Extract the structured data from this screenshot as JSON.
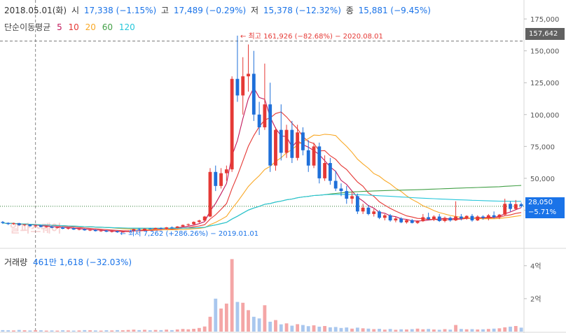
{
  "header": {
    "date": "2018.05.01(화)",
    "open_label": "시",
    "open_value": "17,338 (−1.15%)",
    "high_label": "고",
    "high_value": "17,489 (−0.29%)",
    "low_label": "저",
    "low_value": "15,378 (−12.32%)",
    "close_label": "종",
    "close_value": "15,881 (−9.45%)"
  },
  "ma_legend": {
    "title": "단순이동평균",
    "items": [
      {
        "label": "5",
        "color": "#c2185b"
      },
      {
        "label": "10",
        "color": "#e53935"
      },
      {
        "label": "20",
        "color": "#f9a825"
      },
      {
        "label": "60",
        "color": "#43a047"
      },
      {
        "label": "120",
        "color": "#26c6da"
      }
    ]
  },
  "annotations": {
    "high": "최고 161,926 (−82.68%) − 2020.08.01",
    "low": "최저 7,262 (+286.26%) − 2019.01.01"
  },
  "current_price": {
    "value": "28,050",
    "change": "−5.71%"
  },
  "high_line_label": "157,642",
  "volume_header": {
    "title": "거래량",
    "value": "461만 1,618 (−32.03%)"
  },
  "watermark": "알파스퀘어",
  "colors": {
    "up": "#e53935",
    "down": "#1e6fd9",
    "vol_up": "#f4a6a6",
    "vol_down": "#a9c7ee"
  },
  "chart_data": [
    {
      "type": "candlestick",
      "y_ticks": [
        "175,000",
        "150,000",
        "125,000",
        "100,000",
        "75,000",
        "50,000",
        "25,000"
      ],
      "ylim": [
        0,
        180000
      ],
      "ohlc": [
        [
          15800,
          16500,
          14200,
          15000
        ],
        [
          15000,
          15500,
          13400,
          14100
        ],
        [
          14100,
          15200,
          13500,
          14800
        ],
        [
          14800,
          15100,
          12800,
          13200
        ],
        [
          13200,
          14000,
          12500,
          13700
        ],
        [
          13700,
          14100,
          12100,
          12400
        ],
        [
          12400,
          13300,
          11900,
          13000
        ],
        [
          13000,
          13400,
          11500,
          11800
        ],
        [
          11800,
          12600,
          11200,
          12300
        ],
        [
          12300,
          12700,
          10900,
          11100
        ],
        [
          11100,
          11900,
          10500,
          11600
        ],
        [
          11600,
          12000,
          10100,
          10400
        ],
        [
          10400,
          11200,
          9800,
          10900
        ],
        [
          10900,
          11300,
          9500,
          9800
        ],
        [
          9800,
          10500,
          9200,
          10200
        ],
        [
          10200,
          10600,
          8900,
          9200
        ],
        [
          9200,
          9900,
          8600,
          9600
        ],
        [
          9600,
          10000,
          8300,
          8600
        ],
        [
          8600,
          9300,
          8000,
          9000
        ],
        [
          9000,
          9400,
          7800,
          8100
        ],
        [
          8100,
          8800,
          7500,
          8500
        ],
        [
          8500,
          8900,
          7262,
          7700
        ],
        [
          7700,
          8400,
          7500,
          8100
        ],
        [
          8100,
          9200,
          7900,
          8900
        ],
        [
          8900,
          10500,
          8700,
          10200
        ],
        [
          10200,
          11000,
          9300,
          9600
        ],
        [
          9600,
          10800,
          9400,
          10500
        ],
        [
          10500,
          11100,
          9800,
          10100
        ],
        [
          10100,
          11300,
          9900,
          11000
        ],
        [
          11000,
          11500,
          10000,
          10400
        ],
        [
          10400,
          11800,
          10200,
          11500
        ],
        [
          11500,
          12300,
          10900,
          11100
        ],
        [
          11100,
          12500,
          10900,
          12200
        ],
        [
          12200,
          13800,
          11800,
          13400
        ],
        [
          13400,
          14500,
          12700,
          14000
        ],
        [
          14000,
          16200,
          13600,
          15800
        ],
        [
          15800,
          17500,
          15000,
          16900
        ],
        [
          16900,
          20500,
          16500,
          20000
        ],
        [
          20000,
          58000,
          19500,
          55000
        ],
        [
          55000,
          60000,
          40000,
          44000
        ],
        [
          44000,
          58000,
          42000,
          54000
        ],
        [
          54000,
          60000,
          48000,
          57000
        ],
        [
          57000,
          130000,
          55000,
          128000
        ],
        [
          128000,
          161926,
          110000,
          115000
        ],
        [
          115000,
          145000,
          100000,
          130000
        ],
        [
          130000,
          155000,
          118000,
          132000
        ],
        [
          132000,
          150000,
          95000,
          100000
        ],
        [
          100000,
          110000,
          84000,
          90000
        ],
        [
          90000,
          140000,
          88000,
          108000
        ],
        [
          108000,
          125000,
          55000,
          60000
        ],
        [
          60000,
          90000,
          56000,
          88000
        ],
        [
          88000,
          108000,
          64000,
          70000
        ],
        [
          70000,
          92000,
          66000,
          88000
        ],
        [
          88000,
          95000,
          62000,
          66000
        ],
        [
          66000,
          92000,
          64000,
          86000
        ],
        [
          86000,
          90000,
          68000,
          72000
        ],
        [
          72000,
          80000,
          55000,
          60000
        ],
        [
          60000,
          78000,
          58000,
          75000
        ],
        [
          75000,
          78000,
          46000,
          50000
        ],
        [
          50000,
          68000,
          48000,
          62000
        ],
        [
          62000,
          66000,
          45000,
          48000
        ],
        [
          48000,
          56000,
          40000,
          42000
        ],
        [
          42000,
          46000,
          36000,
          40000
        ],
        [
          40000,
          44000,
          30000,
          34000
        ],
        [
          34000,
          40000,
          30000,
          36000
        ],
        [
          36000,
          38000,
          22000,
          24000
        ],
        [
          24000,
          30000,
          22000,
          27000
        ],
        [
          27000,
          29000,
          21000,
          22000
        ],
        [
          22000,
          26000,
          20000,
          24000
        ],
        [
          24000,
          25000,
          18000,
          19000
        ],
        [
          19000,
          22000,
          17000,
          21000
        ],
        [
          21000,
          22000,
          16000,
          17000
        ],
        [
          17000,
          20000,
          15500,
          18500
        ],
        [
          18500,
          19500,
          14800,
          15500
        ],
        [
          15500,
          18000,
          14500,
          17200
        ],
        [
          17200,
          18000,
          14600,
          15000
        ],
        [
          15000,
          17000,
          14200,
          16400
        ],
        [
          16400,
          22000,
          15800,
          19500
        ],
        [
          19500,
          23000,
          17200,
          18000
        ],
        [
          18000,
          21000,
          16500,
          20000
        ],
        [
          20000,
          22000,
          15800,
          16500
        ],
        [
          16500,
          20000,
          15500,
          19000
        ],
        [
          19000,
          20000,
          16000,
          17000
        ],
        [
          17000,
          32000,
          16500,
          20000
        ],
        [
          20000,
          22000,
          17000,
          18500
        ],
        [
          18500,
          21000,
          17500,
          20500
        ],
        [
          20500,
          22000,
          16000,
          17000
        ],
        [
          17000,
          21000,
          16500,
          20000
        ],
        [
          20000,
          21000,
          17500,
          19000
        ],
        [
          19000,
          22000,
          17000,
          21000
        ],
        [
          21000,
          24000,
          18500,
          19500
        ],
        [
          19500,
          22000,
          18000,
          21500
        ],
        [
          21500,
          34000,
          21000,
          30000
        ],
        [
          30000,
          32000,
          24000,
          26000
        ],
        [
          26000,
          33000,
          25000,
          29750
        ],
        [
          29750,
          31000,
          27000,
          28050
        ]
      ],
      "volume_ticks": [
        "4억",
        "2억"
      ],
      "volume_ylim": [
        0,
        450000000
      ],
      "volumes": [
        9000000,
        8000000,
        7000000,
        10000000,
        8000000,
        7000000,
        9000000,
        8000000,
        6000000,
        7000000,
        6000000,
        8000000,
        7000000,
        6000000,
        7000000,
        9000000,
        8000000,
        7000000,
        6000000,
        8000000,
        7000000,
        9000000,
        8000000,
        10000000,
        12000000,
        9000000,
        11000000,
        8000000,
        10000000,
        9000000,
        12000000,
        9000000,
        13000000,
        16000000,
        14000000,
        17000000,
        22000000,
        31000000,
        90000000,
        200000000,
        140000000,
        170000000,
        440000000,
        180000000,
        175000000,
        130000000,
        90000000,
        80000000,
        160000000,
        60000000,
        70000000,
        44000000,
        50000000,
        36000000,
        45000000,
        40000000,
        33000000,
        38000000,
        30000000,
        34000000,
        26000000,
        28000000,
        22000000,
        25000000,
        18000000,
        24000000,
        20000000,
        18000000,
        15000000,
        17000000,
        12000000,
        16000000,
        11000000,
        14000000,
        13000000,
        15000000,
        18000000,
        14000000,
        16000000,
        13000000,
        11000000,
        15000000,
        12000000,
        40000000,
        16000000,
        14000000,
        15000000,
        13000000,
        14000000,
        16000000,
        18000000,
        20000000,
        26000000,
        30000000,
        34000000,
        24000000
      ]
    }
  ]
}
